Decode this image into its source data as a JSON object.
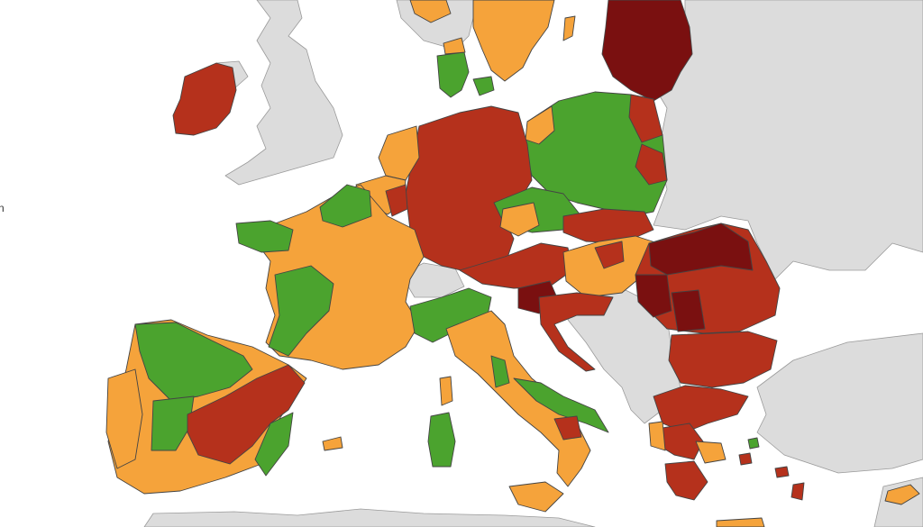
{
  "edge_text": "n",
  "colors": {
    "sea": "#ffffff",
    "non_eu_land": "#dcdcdc",
    "green": "#4ba32e",
    "orange": "#f5a33b",
    "red": "#b5311c",
    "dark_red": "#7a1010"
  },
  "legend_levels": [
    "green",
    "orange",
    "red",
    "dark_red"
  ]
}
